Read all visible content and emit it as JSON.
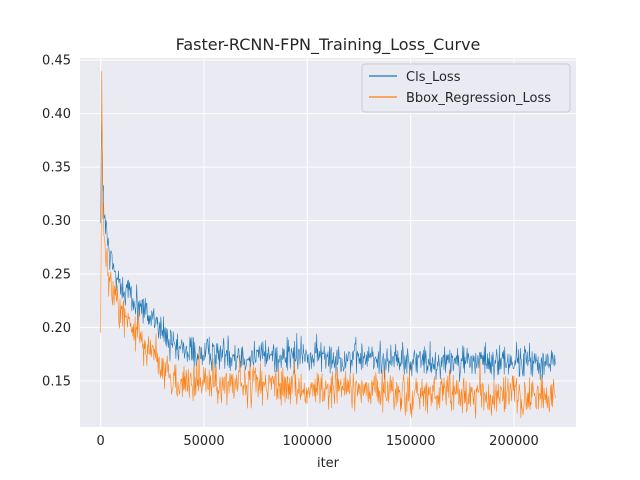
{
  "chart_data": {
    "type": "line",
    "title": "Faster-RCNN-FPN_Training_Loss_Curve",
    "xlabel": "iter",
    "ylabel": "",
    "xlim": [
      -10000,
      230000
    ],
    "ylim": [
      0.107,
      0.452
    ],
    "x_ticks": [
      0,
      50000,
      100000,
      150000,
      200000
    ],
    "x_tick_labels": [
      "0",
      "50000",
      "100000",
      "150000",
      "200000"
    ],
    "y_ticks": [
      0.15,
      0.2,
      0.25,
      0.3,
      0.35,
      0.4,
      0.45
    ],
    "y_tick_labels": [
      "0.15",
      "0.20",
      "0.25",
      "0.30",
      "0.35",
      "0.40",
      "0.45"
    ],
    "grid": true,
    "legend_position": "top-right",
    "background": "#eaeaf2",
    "series": [
      {
        "name": "Cls_Loss",
        "color": "#1f77b4",
        "noise_band": 0.016,
        "x": [
          0,
          500,
          1000,
          2000,
          4000,
          6000,
          8000,
          10000,
          15000,
          20000,
          25000,
          30000,
          35000,
          40000,
          50000,
          60000,
          80000,
          100000,
          120000,
          140000,
          160000,
          180000,
          200000,
          220000
        ],
        "y": [
          0.33,
          0.4,
          0.32,
          0.295,
          0.27,
          0.255,
          0.245,
          0.24,
          0.228,
          0.218,
          0.208,
          0.195,
          0.18,
          0.177,
          0.176,
          0.175,
          0.174,
          0.173,
          0.172,
          0.17,
          0.169,
          0.168,
          0.168,
          0.167
        ]
      },
      {
        "name": "Bbox_Regression_Loss",
        "color": "#ff7f0e",
        "noise_band": 0.018,
        "x": [
          0,
          500,
          1000,
          2000,
          4000,
          6000,
          8000,
          10000,
          15000,
          20000,
          25000,
          30000,
          35000,
          40000,
          50000,
          60000,
          80000,
          100000,
          120000,
          140000,
          160000,
          180000,
          200000,
          220000
        ],
        "y": [
          0.2,
          0.43,
          0.3,
          0.27,
          0.245,
          0.232,
          0.222,
          0.215,
          0.2,
          0.19,
          0.178,
          0.162,
          0.15,
          0.148,
          0.147,
          0.146,
          0.145,
          0.143,
          0.142,
          0.138,
          0.137,
          0.137,
          0.136,
          0.136
        ]
      }
    ]
  }
}
